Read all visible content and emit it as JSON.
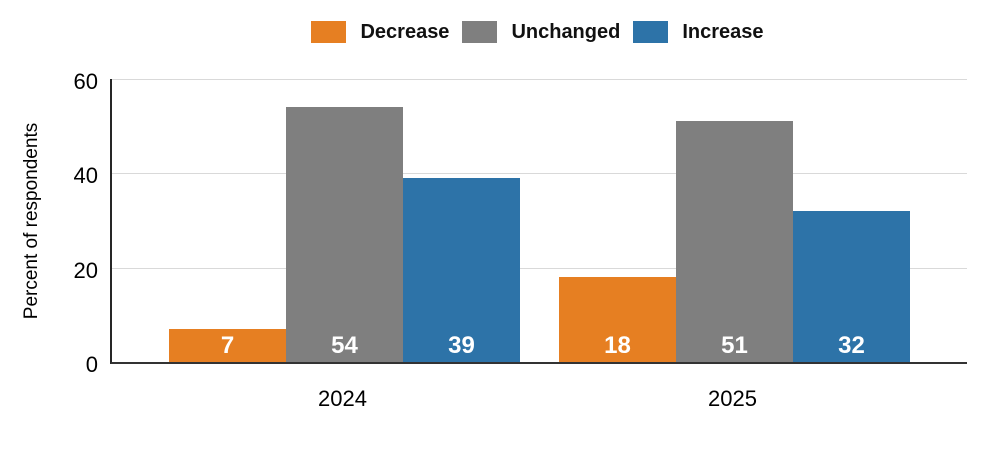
{
  "chart_data": {
    "type": "bar",
    "ylabel": "Percent of respondents",
    "xlabel": "",
    "categories": [
      "2024",
      "2025"
    ],
    "series": [
      {
        "name": "Decrease",
        "color": "#E67F22",
        "values": [
          7,
          18
        ]
      },
      {
        "name": "Unchanged",
        "color": "#7F7F7F",
        "values": [
          54,
          51
        ]
      },
      {
        "name": "Increase",
        "color": "#2D73A8",
        "values": [
          39,
          32
        ]
      }
    ],
    "ylim": [
      0,
      60
    ],
    "yticks": [
      0,
      20,
      40,
      60
    ],
    "grid": "horizontal",
    "legend_position": "top",
    "bar_value_labels": true,
    "bar_value_label_color": "#FFFFFF"
  }
}
